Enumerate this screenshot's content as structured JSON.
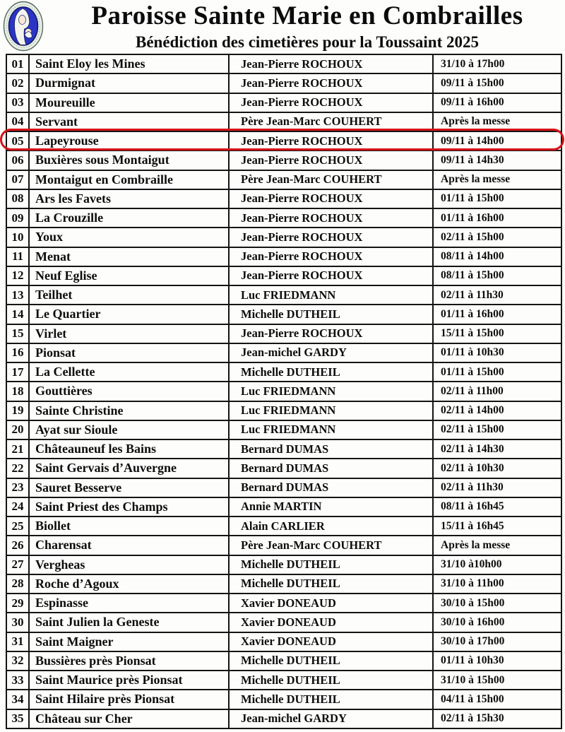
{
  "header": {
    "title": "Paroisse Sainte Marie en Combrailles",
    "subtitle": "Bénédiction des cimetières pour la Toussaint 2025",
    "logo_icon": "virgin-mary-medallion",
    "logo_colors": {
      "mantle_blue": "#2b35c5",
      "rim": "#e9efe6",
      "outline": "#57695c"
    }
  },
  "highlight": {
    "circled_row_number": "05",
    "ring_color": "#d51318"
  },
  "table": {
    "columns": [
      "numero",
      "lieu",
      "responsable",
      "date_heure"
    ],
    "rows": [
      [
        "01",
        "Saint Eloy les Mines",
        "Jean-Pierre ROCHOUX",
        "31/10 à 17h00"
      ],
      [
        "02",
        "Durmignat",
        "Jean-Pierre ROCHOUX",
        "09/11 à 15h00"
      ],
      [
        "03",
        "Moureuille",
        "Jean-Pierre ROCHOUX",
        "09/11 à 16h00"
      ],
      [
        "04",
        "Servant",
        "Père Jean-Marc COUHERT",
        "Après la messe"
      ],
      [
        "05",
        "Lapeyrouse",
        "Jean-Pierre ROCHOUX",
        "09/11 à  14h00"
      ],
      [
        "06",
        "Buxières sous Montaigut",
        "Jean-Pierre ROCHOUX",
        "09/11 à  14h30"
      ],
      [
        "07",
        "Montaigut en Combraille",
        "Père Jean-Marc COUHERT",
        "Après la messe"
      ],
      [
        "08",
        "Ars les Favets",
        "Jean-Pierre ROCHOUX",
        "01/11 à 15h00"
      ],
      [
        "09",
        "La Crouzille",
        "Jean-Pierre ROCHOUX",
        "01/11 à 16h00"
      ],
      [
        "10",
        "Youx",
        "Jean-Pierre ROCHOUX",
        "02/11 à 15h00"
      ],
      [
        "11",
        "Menat",
        "Jean-Pierre ROCHOUX",
        "08/11 à 14h00"
      ],
      [
        "12",
        "Neuf Eglise",
        "Jean-Pierre ROCHOUX",
        "08/11 à 15h00"
      ],
      [
        "13",
        "Teilhet",
        "Luc FRIEDMANN",
        "02/11 à 11h30"
      ],
      [
        "14",
        "Le Quartier",
        "Michelle DUTHEIL",
        "01/11 à 16h00"
      ],
      [
        "15",
        "Virlet",
        "Jean-Pierre ROCHOUX",
        "15/11 à 15h00"
      ],
      [
        "16",
        "Pionsat",
        "Jean-michel GARDY",
        "01/11 à 10h30"
      ],
      [
        "17",
        "La Cellette",
        "Michelle DUTHEIL",
        "01/11 à 15h00"
      ],
      [
        "18",
        "Gouttières",
        "Luc FRIEDMANN",
        "02/11 à 11h00"
      ],
      [
        "19",
        "Sainte Christine",
        "Luc FRIEDMANN",
        "02/11 à 14h00"
      ],
      [
        "20",
        "Ayat sur Sioule",
        "Luc FRIEDMANN",
        "02/11 à 15h00"
      ],
      [
        "21",
        "Châteauneuf les Bains",
        "Bernard DUMAS",
        "02/11 à 14h30"
      ],
      [
        "22",
        "Saint Gervais d’Auvergne",
        "Bernard DUMAS",
        "02/11 à 10h30"
      ],
      [
        "23",
        "Sauret Besserve",
        "Bernard DUMAS",
        "02/11 à 11h30"
      ],
      [
        "24",
        "Saint Priest des Champs",
        "Annie MARTIN",
        "08/11 à 16h45"
      ],
      [
        "25",
        "Biollet",
        "Alain CARLIER",
        "15/11 à 16h45"
      ],
      [
        "26",
        "Charensat",
        "Père Jean-Marc COUHERT",
        "Après la messe"
      ],
      [
        "27",
        "Vergheas",
        "Michelle DUTHEIL",
        "31/10 à10h00"
      ],
      [
        "28",
        "Roche d’Agoux",
        "Michelle DUTHEIL",
        "31/10 à 11h00"
      ],
      [
        "29",
        "Espinasse",
        "Xavier DONEAUD",
        "30/10 à 15h00"
      ],
      [
        "30",
        "Saint Julien la Geneste",
        "Xavier DONEAUD",
        "30/10 à 16h00"
      ],
      [
        "31",
        "Saint Maigner",
        "Xavier DONEAUD",
        "30/10 à 17h00"
      ],
      [
        "32",
        "Bussières près Pionsat",
        "Michelle DUTHEIL",
        "01/11 à 10h30"
      ],
      [
        "33",
        "Saint Maurice près Pionsat",
        "Michelle DUTHEIL",
        "31/10 à 15h00"
      ],
      [
        "34",
        "Saint Hilaire près Pionsat",
        "Michelle DUTHEIL",
        "04/11 à 15h00"
      ],
      [
        "35",
        "Château sur Cher",
        "Jean-michel GARDY",
        "02/11 à 15h30"
      ]
    ]
  }
}
